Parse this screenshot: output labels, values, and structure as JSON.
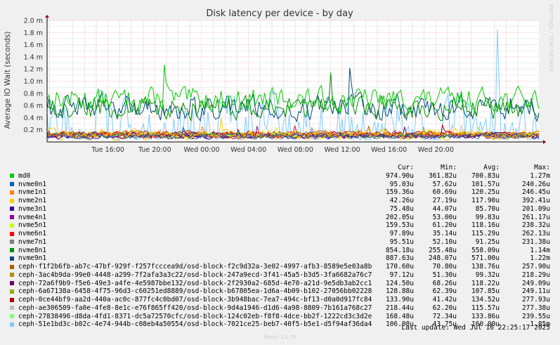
{
  "chart_data": {
    "type": "line",
    "title": "Disk latency per device - by day",
    "ylabel": "Average IO Wait (seconds)",
    "ylim": [
      0,
      2.0
    ],
    "y_ticks": [
      {
        "v": 0.2,
        "label": "0.2 m"
      },
      {
        "v": 0.4,
        "label": "0.4 m"
      },
      {
        "v": 0.6,
        "label": "0.6 m"
      },
      {
        "v": 0.8,
        "label": "0.8 m"
      },
      {
        "v": 1.0,
        "label": "1.0 m"
      },
      {
        "v": 1.2,
        "label": "1.2 m"
      },
      {
        "v": 1.4,
        "label": "1.4 m"
      },
      {
        "v": 1.6,
        "label": "1.6 m"
      },
      {
        "v": 1.8,
        "label": "1.8 m"
      },
      {
        "v": 2.0,
        "label": "2.0 m"
      }
    ],
    "xlim": [
      12.7,
      23.2
    ],
    "x_ticks": [
      {
        "h": 14,
        "label": "Tue 16:00"
      },
      {
        "h": 15,
        "label": "Tue 20:00"
      },
      {
        "h": 16,
        "label": "Wed 00:00"
      },
      {
        "h": 17,
        "label": "Wed 04:00"
      },
      {
        "h": 18,
        "label": "Wed 08:00"
      },
      {
        "h": 19,
        "label": "Wed 12:00"
      },
      {
        "h": 20,
        "label": "Wed 16:00"
      },
      {
        "h": 21,
        "label": "Wed 20:00"
      }
    ],
    "grid": true,
    "columns": [
      "Cur:",
      "Min:",
      "Avg:",
      "Max:"
    ],
    "series": [
      {
        "name": "md0",
        "color": "#00cc00",
        "cur": "974.90u",
        "min": "361.82u",
        "avg": "700.83u",
        "max": "1.27m"
      },
      {
        "name": "nvme0n1",
        "color": "#0066b3",
        "cur": "95.03u",
        "min": "57.62u",
        "avg": "101.57u",
        "max": "240.26u"
      },
      {
        "name": "nvme1n1",
        "color": "#ff8000",
        "cur": "159.36u",
        "min": "60.69u",
        "avg": "120.25u",
        "max": "246.45u"
      },
      {
        "name": "nvme2n1",
        "color": "#ffcc00",
        "cur": "42.26u",
        "min": "27.19u",
        "avg": "117.90u",
        "max": "392.41u"
      },
      {
        "name": "nvme3n1",
        "color": "#330099",
        "cur": "75.48u",
        "min": "44.07u",
        "avg": "85.70u",
        "max": "201.09u"
      },
      {
        "name": "nvme4n1",
        "color": "#990099",
        "cur": "202.05u",
        "min": "53.00u",
        "avg": "99.83u",
        "max": "261.17u"
      },
      {
        "name": "nvme5n1",
        "color": "#ccff00",
        "cur": "159.53u",
        "min": "61.20u",
        "avg": "118.16u",
        "max": "238.32u"
      },
      {
        "name": "nvme6n1",
        "color": "#ff0000",
        "cur": "97.89u",
        "min": "35.14u",
        "avg": "115.29u",
        "max": "262.13u"
      },
      {
        "name": "nvme7n1",
        "color": "#808080",
        "cur": "95.51u",
        "min": "52.10u",
        "avg": "91.25u",
        "max": "231.38u"
      },
      {
        "name": "nvme8n1",
        "color": "#008f00",
        "cur": "854.18u",
        "min": "255.48u",
        "avg": "558.09u",
        "max": "1.14m"
      },
      {
        "name": "nvme9n1",
        "color": "#00487d",
        "cur": "887.63u",
        "min": "248.07u",
        "avg": "571.00u",
        "max": "1.22m"
      },
      {
        "name": "ceph-f1f2b6fb-ab7c-47bf-929f-f257fcccea9d/osd-block-f2c9d32a-3e02-4997-afb3-8589e5e03a8b",
        "color": "#b35a00",
        "cur": "170.60u",
        "min": "70.80u",
        "avg": "138.76u",
        "max": "257.90u"
      },
      {
        "name": "ceph-3ac4b9da-99e0-4448-a299-7f2afa3a3c22/osd-block-247a9ecd-3f41-45a5-b3d5-3fa6682a76c7",
        "color": "#b38f00",
        "cur": "97.12u",
        "min": "51.30u",
        "avg": "99.32u",
        "max": "218.29u"
      },
      {
        "name": "ceph-72a6f9b9-f5e6-49e3-a4fe-4e5987bbe132/osd-block-2f2930a2-685d-4e70-a21d-9e5db3ab2cc1",
        "color": "#6b006b",
        "cur": "124.50u",
        "min": "68.26u",
        "avg": "118.22u",
        "max": "249.09u"
      },
      {
        "name": "ceph-6a67138a-6458-4f75-96d3-c60251ed8889/osd-block-b67805ea-1d6a-4b09-b102-27056bb02228",
        "color": "#8fb300",
        "cur": "128.88u",
        "min": "62.39u",
        "avg": "107.85u",
        "max": "249.11u"
      },
      {
        "name": "ceph-0ce44bf9-aa2d-440a-ac0c-877fc4c0bd07/osd-block-3b948bac-7ea7-494c-bf13-d0a0d917fc84",
        "color": "#b30000",
        "cur": "133.90u",
        "min": "41.42u",
        "avg": "134.52u",
        "max": "277.93u"
      },
      {
        "name": "ceph-ae306509-fa0e-4fe8-8e1c-e76f865ff420/osd-block-9d4a1946-d1d6-4a98-8809-7b161a768c27",
        "color": "#bebebe",
        "cur": "218.44u",
        "min": "62.20u",
        "avg": "115.57u",
        "max": "277.38u"
      },
      {
        "name": "ceph-27838496-d8da-4fd1-8371-dc5a72570cfc/osd-block-124c02eb-f8f8-4dce-bb2f-1222cd3c3d2e",
        "color": "#80ff80",
        "cur": "168.48u",
        "min": "72.34u",
        "avg": "133.86u",
        "max": "239.55u"
      },
      {
        "name": "ceph-51e1bd3c-b02c-4e74-944b-c08eb4a50554/osd-block-7021ce25-beb7-40f5-b5e1-d5f94af36da4",
        "color": "#80c9ff",
        "cur": "106.08u",
        "min": "43.75u",
        "avg": "160.00u",
        "max": "1.85m"
      }
    ]
  },
  "last_update": "Last update:  Wed Jul 16 22:25:17 2025",
  "footer": "Munin 2.0.75",
  "watermark": "RRDTOOL / TOBI OETIKER"
}
